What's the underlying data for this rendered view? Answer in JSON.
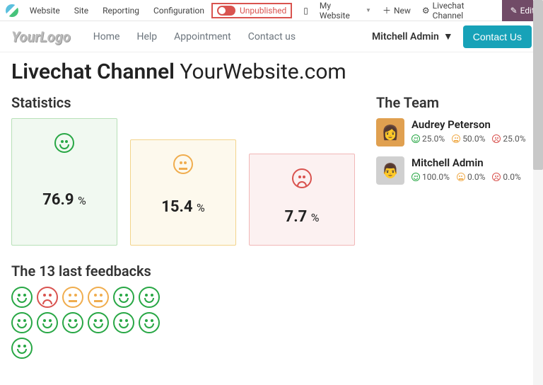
{
  "topbar": {
    "brand": "Website",
    "nav": [
      "Site",
      "Reporting",
      "Configuration"
    ],
    "publish_label": "Unpublished",
    "my_site": "My Website",
    "new": "New",
    "channel": "Livechat Channel",
    "edit": "Edit"
  },
  "navbar": {
    "logo": "YourLogo",
    "links": [
      "Home",
      "Help",
      "Appointment",
      "Contact us"
    ],
    "user": "Mitchell Admin",
    "contact": "Contact Us"
  },
  "page": {
    "title_bold": "Livechat Channel",
    "title_rest": "YourWebsite.com",
    "stats_heading": "Statistics",
    "team_heading": "The Team",
    "feedbacks_heading": "The 13 last feedbacks"
  },
  "stats": [
    {
      "mood": "happy",
      "value": "76.9",
      "pct": "%",
      "color_bg": "#f1f9f1",
      "color_border": "#b7e0b7"
    },
    {
      "mood": "neutral",
      "value": "15.4",
      "pct": "%",
      "color_bg": "#fdf9ed",
      "color_border": "#f3d48b"
    },
    {
      "mood": "sad",
      "value": "7.7",
      "pct": "%",
      "color_bg": "#fcf1f1",
      "color_border": "#f1b7b7"
    }
  ],
  "team": [
    {
      "name": "Audrey Peterson",
      "happy": "25.0%",
      "neutral": "50.0%",
      "sad": "25.0%"
    },
    {
      "name": "Mitchell Admin",
      "happy": "100.0%",
      "neutral": "0.0%",
      "sad": "0.0%"
    }
  ],
  "feedbacks": [
    "happy",
    "sad",
    "neutral",
    "neutral",
    "happy",
    "happy",
    "happy",
    "happy",
    "happy",
    "happy",
    "happy",
    "happy",
    "happy"
  ]
}
